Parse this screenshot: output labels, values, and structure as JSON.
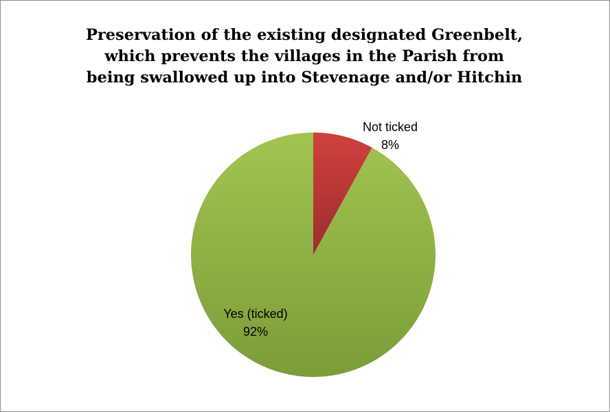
{
  "chart_data": {
    "type": "pie",
    "title_lines": [
      "Preservation of the existing designated Greenbelt,",
      "which prevents the villages in the Parish from",
      "being swallowed up into Stevenage and/or Hitchin"
    ],
    "title": "Preservation of the existing designated Greenbelt, which prevents the villages in the Parish from being swallowed up into Stevenage and/or Hitchin",
    "slices": [
      {
        "label": "Not ticked",
        "value": 8,
        "value_label": "8%",
        "color": "#c0383a"
      },
      {
        "label": "Yes (ticked)",
        "value": 92,
        "value_label": "92%",
        "color": "#9bbb4a"
      }
    ],
    "legend": "none",
    "start": "top",
    "direction": "clockwise"
  }
}
